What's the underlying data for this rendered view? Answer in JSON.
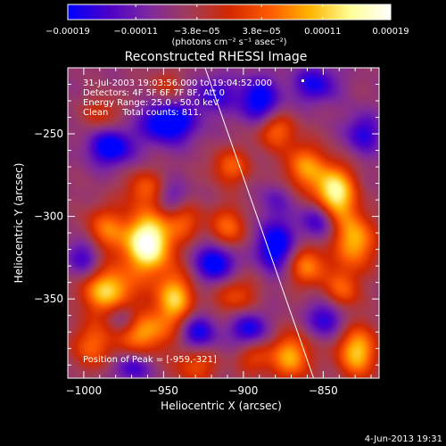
{
  "chart_data": {
    "type": "heatmap",
    "title": "Reconstructed RHESSI Image",
    "xlabel": "Heliocentric X (arcsec)",
    "ylabel": "Heliocentric Y (arcsec)",
    "xlim": [
      -1010,
      -815
    ],
    "ylim": [
      -398,
      -210
    ],
    "x_ticks": [
      -1000,
      -950,
      -900,
      -850
    ],
    "x_tick_labels": [
      "−1000",
      "−950",
      "−900",
      "−850"
    ],
    "y_ticks": [
      -250,
      -300,
      -350
    ],
    "y_tick_labels": [
      "−250",
      "−300",
      "−350"
    ],
    "colorbar": {
      "range": [
        -0.00019,
        0.00019
      ],
      "ticks": [
        -0.00019,
        -0.00011,
        -3.8e-05,
        3.8e-05,
        0.00011,
        0.00019
      ],
      "tick_labels": [
        "−0.00019",
        "−0.00011",
        "−3.8e−05",
        "3.8e−05",
        "0.00011",
        "0.00019"
      ],
      "units_label": "(photons cm⁻² s⁻¹ asec⁻²)",
      "colors": [
        "#0000ff",
        "#4b00c8",
        "#7d28a0",
        "#a03c5a",
        "#d22800",
        "#ff5a00",
        "#ffb400",
        "#ffff96",
        "#ffffff"
      ]
    },
    "annotations": {
      "time_range": "31-Jul-2003 19:03:56.000 to 19:04:52.000",
      "detectors": "Detectors: 4F 5F 6F 7F 8F, Att 0",
      "energy": "Energy Range: 25.0 - 50.0 keV",
      "clean_counts": "Clean     Total counts: 811.",
      "peak": "Position of Peak = [-959,-321]"
    },
    "peak_position": [
      -959,
      -321
    ],
    "limb_line": [
      [
        -924,
        -210
      ],
      [
        -856,
        -398
      ]
    ],
    "blobs": [
      [
        -960,
        -316,
        1.35,
        11,
        13
      ],
      [
        -943,
        -350,
        0.9,
        9,
        11
      ],
      [
        -985,
        -345,
        0.95,
        12,
        10
      ],
      [
        -963,
        -370,
        0.8,
        12,
        9
      ],
      [
        -987,
        -308,
        0.6,
        9,
        10
      ],
      [
        -995,
        -378,
        0.55,
        10,
        10
      ],
      [
        -930,
        -390,
        0.5,
        10,
        8
      ],
      [
        -962,
        -283,
        0.5,
        9,
        8
      ],
      [
        -937,
        -303,
        0.45,
        8,
        8
      ],
      [
        -908,
        -270,
        0.55,
        9,
        8
      ],
      [
        -910,
        -308,
        0.6,
        9,
        10
      ],
      [
        -905,
        -348,
        0.5,
        10,
        10
      ],
      [
        -880,
        -248,
        0.6,
        9,
        8
      ],
      [
        -862,
        -270,
        0.7,
        9,
        10
      ],
      [
        -843,
        -286,
        1.15,
        9,
        12
      ],
      [
        -830,
        -315,
        0.85,
        9,
        12
      ],
      [
        -860,
        -330,
        0.7,
        9,
        9
      ],
      [
        -870,
        -385,
        0.8,
        9,
        10
      ],
      [
        -829,
        -382,
        0.9,
        9,
        11
      ],
      [
        -838,
        -345,
        0.55,
        8,
        9
      ],
      [
        -988,
        -238,
        0.35,
        9,
        8
      ],
      [
        -948,
        -222,
        0.3,
        9,
        8
      ],
      [
        -893,
        -385,
        0.45,
        8,
        8
      ],
      [
        -983,
        -258,
        -0.8,
        10,
        8
      ],
      [
        -947,
        -243,
        -0.9,
        12,
        9
      ],
      [
        -918,
        -226,
        -0.5,
        10,
        8
      ],
      [
        -890,
        -230,
        -0.75,
        9,
        10
      ],
      [
        -855,
        -220,
        -0.6,
        10,
        8
      ],
      [
        -825,
        -250,
        -0.55,
        8,
        9
      ],
      [
        -917,
        -328,
        -0.85,
        9,
        9
      ],
      [
        -880,
        -318,
        -0.8,
        9,
        11
      ],
      [
        -853,
        -302,
        -0.6,
        8,
        8
      ],
      [
        -1000,
        -325,
        -0.5,
        8,
        9
      ],
      [
        -975,
        -362,
        -0.45,
        7,
        7
      ],
      [
        -928,
        -370,
        -0.65,
        8,
        8
      ],
      [
        -897,
        -368,
        -0.7,
        8,
        8
      ],
      [
        -848,
        -362,
        -0.6,
        8,
        8
      ],
      [
        -945,
        -288,
        -0.35,
        7,
        7
      ],
      [
        -970,
        -392,
        -0.5,
        8,
        6
      ],
      [
        -880,
        -290,
        -0.3,
        7,
        7
      ]
    ]
  },
  "footer": {
    "timestamp": "4-Jun-2013 19:31"
  }
}
